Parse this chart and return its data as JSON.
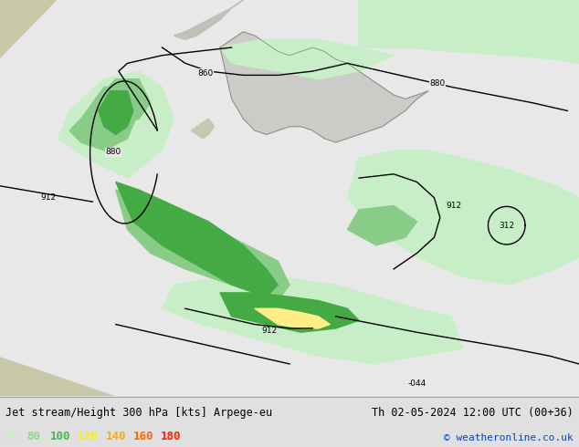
{
  "title_left": "Jet stream/Height 300 hPa [kts] Arpege-eu",
  "title_right": "Th 02-05-2024 12:00 UTC (00+36)",
  "copyright": "© weatheronline.co.uk",
  "legend_values": [
    "60",
    "80",
    "100",
    "120",
    "140",
    "160",
    "180"
  ],
  "legend_colors": [
    "#c8f0c8",
    "#90d890",
    "#44bb44",
    "#ffee00",
    "#ffaa00",
    "#ff6600",
    "#ff2200"
  ],
  "bg_land_color": "#c8c8a8",
  "bg_sea_color": "#b8c8b8",
  "white_zone_color": "#f0f0f0",
  "light_green": "#c8eec8",
  "mid_green": "#88cc88",
  "dark_green": "#44aa44",
  "yellow": "#ffee88",
  "fig_width": 6.34,
  "fig_height": 4.9,
  "dpi": 100,
  "title_fontsize": 8.5,
  "legend_fontsize": 9,
  "bottom_bg": "#e0e0e0",
  "contour_color": "#000000",
  "contour_lw": 1.0,
  "label_fontsize": 6.5
}
